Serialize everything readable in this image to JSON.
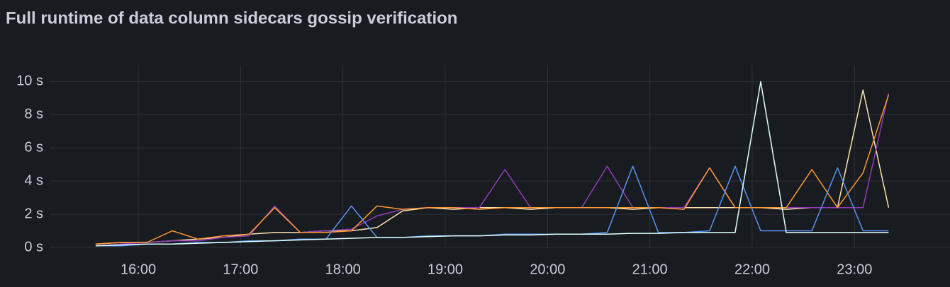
{
  "chart_data": {
    "type": "line",
    "title": "Full runtime of data column sidecars gossip verification",
    "x": [
      "15:35",
      "15:50",
      "16:05",
      "16:20",
      "16:35",
      "16:50",
      "17:05",
      "17:20",
      "17:35",
      "17:50",
      "18:05",
      "18:20",
      "18:35",
      "18:50",
      "19:05",
      "19:20",
      "19:35",
      "19:50",
      "20:05",
      "20:20",
      "20:35",
      "20:50",
      "21:05",
      "21:20",
      "21:35",
      "21:50",
      "22:05",
      "22:20",
      "22:35",
      "22:50",
      "23:05",
      "23:20"
    ],
    "series": [
      {
        "color": "#fce2b0",
        "values": [
          0.2,
          0.3,
          0.3,
          0.4,
          0.5,
          0.6,
          0.8,
          0.9,
          0.9,
          1.0,
          1.0,
          1.2,
          2.2,
          2.4,
          2.3,
          2.4,
          2.4,
          2.3,
          2.4,
          2.4,
          2.4,
          2.3,
          2.4,
          2.4,
          2.4,
          2.4,
          2.4,
          2.3,
          2.4,
          2.4,
          9.5,
          2.4
        ]
      },
      {
        "color": "#8f3bb8",
        "values": [
          0.1,
          0.2,
          0.3,
          0.4,
          0.4,
          0.6,
          0.7,
          2.5,
          0.9,
          1.0,
          1.1,
          1.9,
          2.3,
          2.4,
          2.4,
          2.4,
          4.7,
          2.4,
          2.4,
          2.4,
          4.9,
          2.4,
          2.4,
          2.4,
          4.8,
          2.4,
          2.4,
          2.4,
          2.4,
          2.4,
          2.4,
          9.3
        ]
      },
      {
        "color": "#ff9830",
        "values": [
          0.2,
          0.3,
          0.3,
          1.0,
          0.5,
          0.7,
          0.8,
          2.4,
          0.9,
          0.9,
          1.0,
          2.5,
          2.3,
          2.4,
          2.4,
          2.3,
          2.4,
          2.4,
          2.4,
          2.4,
          2.4,
          2.4,
          2.4,
          2.3,
          4.8,
          2.4,
          2.4,
          2.4,
          4.7,
          2.4,
          4.5,
          9.2
        ]
      },
      {
        "color": "#5794f2",
        "values": [
          0.1,
          0.1,
          0.2,
          0.2,
          0.3,
          0.3,
          0.4,
          0.4,
          0.5,
          0.5,
          2.5,
          0.6,
          0.6,
          0.7,
          0.7,
          0.7,
          0.8,
          0.8,
          0.8,
          0.8,
          0.9,
          4.9,
          0.9,
          0.9,
          1.0,
          4.9,
          1.0,
          1.0,
          1.0,
          4.8,
          1.0,
          1.0
        ]
      },
      {
        "color": "#e0ffff",
        "values": [
          0.1,
          0.15,
          0.2,
          0.2,
          0.25,
          0.3,
          0.35,
          0.4,
          0.45,
          0.5,
          0.55,
          0.6,
          0.6,
          0.65,
          0.7,
          0.7,
          0.75,
          0.75,
          0.8,
          0.8,
          0.8,
          0.85,
          0.85,
          0.9,
          0.9,
          0.9,
          10.0,
          0.9,
          0.9,
          0.9,
          0.9,
          0.9
        ]
      }
    ],
    "xlim": [
      "15:08",
      "23:56"
    ],
    "xticks": [
      "16:00",
      "17:00",
      "18:00",
      "19:00",
      "20:00",
      "21:00",
      "22:00",
      "23:00"
    ],
    "ylim": [
      0,
      11
    ],
    "yticks": [
      {
        "value": 0,
        "label": "0 s"
      },
      {
        "value": 2,
        "label": "2 s"
      },
      {
        "value": 4,
        "label": "4 s"
      },
      {
        "value": 6,
        "label": "6 s"
      },
      {
        "value": 8,
        "label": "8 s"
      },
      {
        "value": 10,
        "label": "10 s"
      }
    ],
    "grid": true
  }
}
